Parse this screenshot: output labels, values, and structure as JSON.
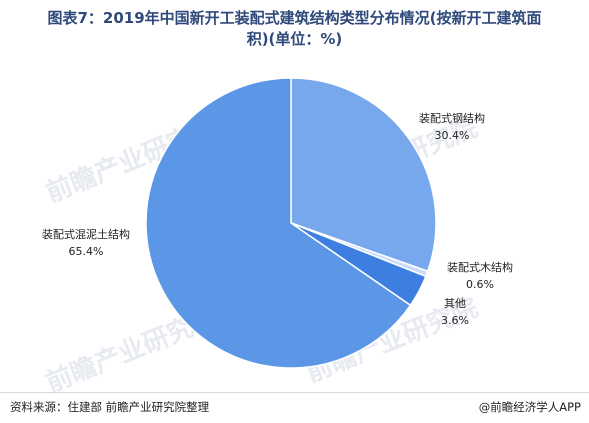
{
  "header": {
    "title_line1": "图表7：2019年中国新开工装配式建筑结构类型分布情况(按新开工建筑面",
    "title_line2": "积)(单位：%)"
  },
  "footer": {
    "source": "资料来源：住建部  前瞻产业研究院整理",
    "brand": "@前瞻经济学人APP"
  },
  "watermark": {
    "text": "前瞻产业研究院"
  },
  "chart_data": {
    "type": "pie",
    "title": "图表7：2019年中国新开工装配式建筑结构类型分布情况(按新开工建筑面积)(单位：%)",
    "unit": "%",
    "categories": [
      "装配式钢结构",
      "装配式木结构",
      "其他",
      "装配式混泥土结构"
    ],
    "values": [
      30.4,
      0.6,
      3.6,
      65.4
    ],
    "value_labels": [
      "30.4%",
      "0.6%",
      "3.6%",
      "65.4%"
    ],
    "colors": [
      "#77a8ee",
      "#c9ddfa",
      "#3d7fe0",
      "#5b97e6"
    ],
    "start_angle": "top, clockwise"
  }
}
